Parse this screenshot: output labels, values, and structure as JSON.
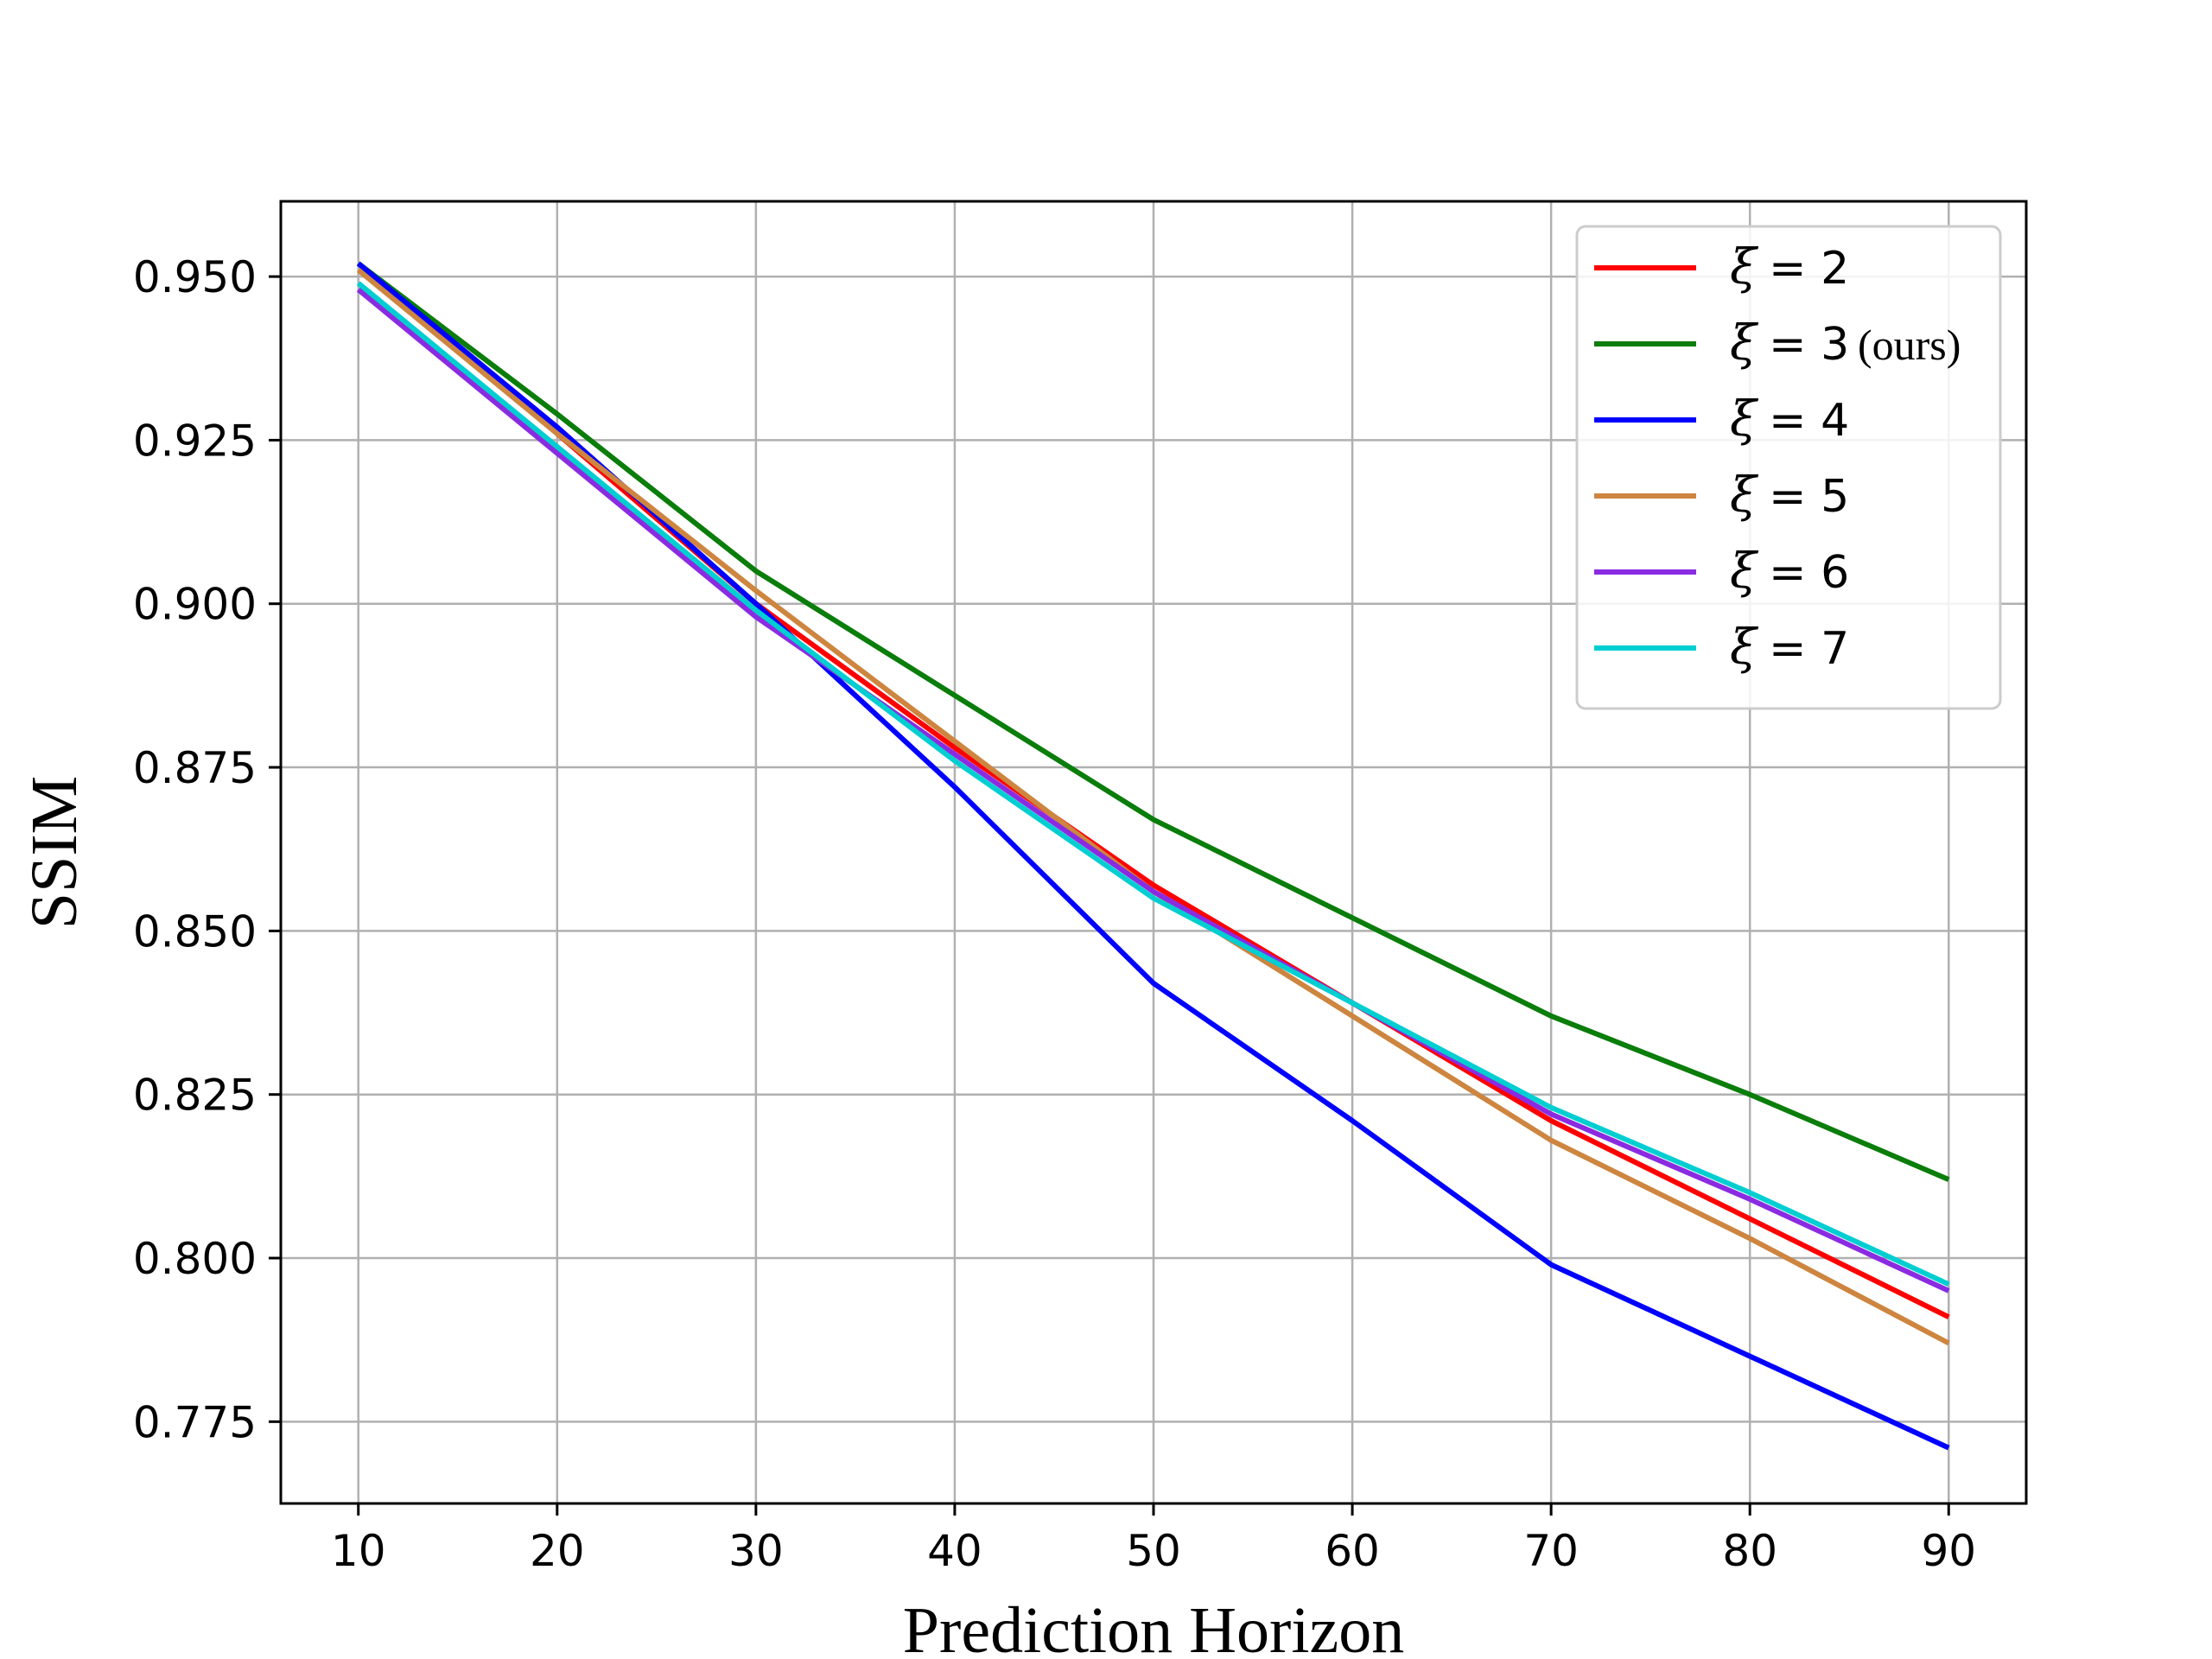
{
  "chart_data": {
    "type": "line",
    "title": "",
    "xlabel": "Prediction Horizon",
    "ylabel": "SSIM",
    "x": [
      10,
      20,
      30,
      40,
      50,
      60,
      70,
      80,
      90
    ],
    "xticks": [
      "10",
      "20",
      "30",
      "40",
      "50",
      "60",
      "70",
      "80",
      "90"
    ],
    "yticks": [
      "0.775",
      "0.800",
      "0.825",
      "0.850",
      "0.875",
      "0.900",
      "0.925",
      "0.950"
    ],
    "xlim": [
      6.1,
      93.9
    ],
    "ylim": [
      0.7625,
      0.9615
    ],
    "grid": true,
    "legend_position": "top-right",
    "legend_symbol": "ξ",
    "series": [
      {
        "name": "2",
        "suffix": "",
        "color": "#ff0000",
        "values": [
          0.952,
          0.926,
          0.9,
          0.878,
          0.857,
          0.839,
          0.821,
          0.806,
          0.791
        ]
      },
      {
        "name": "3",
        "suffix": "(ours)",
        "color": "#0a7d0a",
        "values": [
          0.952,
          0.929,
          0.905,
          0.886,
          0.867,
          0.852,
          0.837,
          0.825,
          0.812
        ]
      },
      {
        "name": "4",
        "suffix": "",
        "color": "#0000ff",
        "values": [
          0.952,
          0.927,
          0.9,
          0.872,
          0.842,
          0.821,
          0.799,
          0.785,
          0.771
        ]
      },
      {
        "name": "5",
        "suffix": "",
        "color": "#cd853f",
        "values": [
          0.951,
          0.926,
          0.902,
          0.879,
          0.856,
          0.837,
          0.818,
          0.803,
          0.787
        ]
      },
      {
        "name": "6",
        "suffix": "",
        "color": "#8a2be2",
        "values": [
          0.948,
          0.923,
          0.898,
          0.877,
          0.856,
          0.839,
          0.822,
          0.809,
          0.795
        ]
      },
      {
        "name": "7",
        "suffix": "",
        "color": "#00ced1",
        "values": [
          0.949,
          0.924,
          0.899,
          0.876,
          0.855,
          0.839,
          0.823,
          0.81,
          0.796
        ]
      }
    ]
  }
}
